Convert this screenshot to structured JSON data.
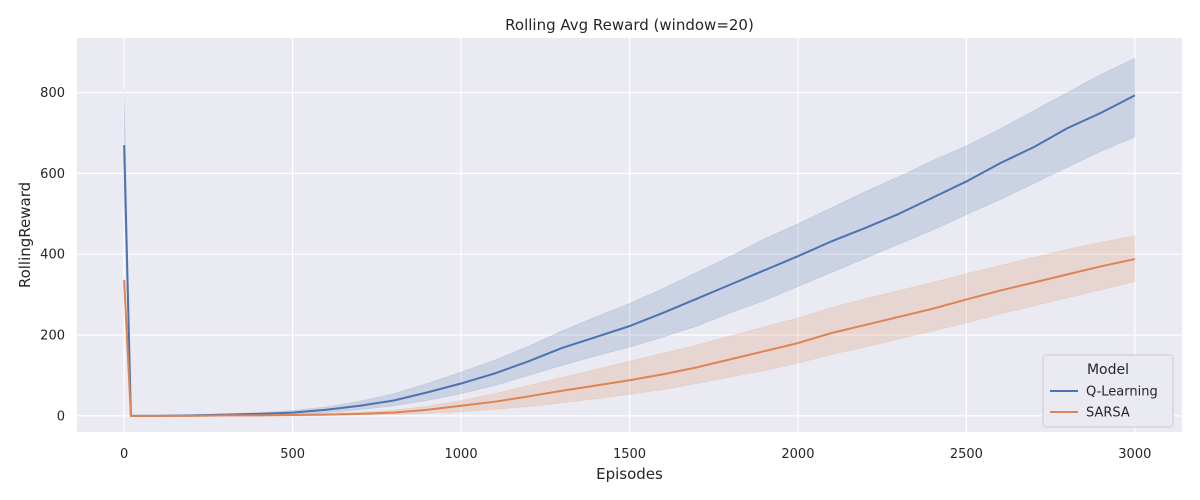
{
  "chart_data": {
    "type": "line",
    "title": "Rolling Avg Reward (window=20)",
    "xlabel": "Episodes",
    "ylabel": "RollingReward",
    "xlim": [
      -140,
      3140
    ],
    "ylim": [
      -40,
      935
    ],
    "xticks": [
      0,
      500,
      1000,
      1500,
      2000,
      2500,
      3000
    ],
    "yticks": [
      0,
      200,
      400,
      600,
      800
    ],
    "grid": true,
    "legend": {
      "title": "Model",
      "placement": "bottom-right"
    },
    "series": [
      {
        "name": "Q-Learning",
        "color": "#4c72b0",
        "x": [
          0,
          20,
          100,
          200,
          300,
          400,
          500,
          600,
          700,
          800,
          900,
          1000,
          1100,
          1200,
          1300,
          1400,
          1500,
          1600,
          1700,
          1800,
          1900,
          2000,
          2100,
          2200,
          2300,
          2400,
          2500,
          2600,
          2700,
          2800,
          2900,
          3000
        ],
        "y": [
          670,
          0,
          0,
          1,
          3,
          5,
          8,
          15,
          25,
          38,
          58,
          80,
          105,
          135,
          168,
          195,
          222,
          255,
          290,
          325,
          360,
          395,
          432,
          465,
          500,
          540,
          580,
          625,
          665,
          712,
          750,
          793
        ],
        "lower": [
          530,
          0,
          0,
          0,
          1,
          2,
          3,
          8,
          15,
          25,
          38,
          55,
          75,
          100,
          125,
          148,
          170,
          195,
          222,
          255,
          285,
          320,
          355,
          390,
          425,
          460,
          498,
          535,
          575,
          615,
          655,
          690
        ],
        "upper": [
          810,
          2,
          1,
          2,
          5,
          8,
          13,
          22,
          36,
          55,
          80,
          108,
          138,
          172,
          210,
          245,
          278,
          315,
          355,
          395,
          438,
          475,
          515,
          555,
          592,
          632,
          668,
          710,
          755,
          800,
          845,
          885
        ]
      },
      {
        "name": "SARSA",
        "color": "#dd8452",
        "x": [
          0,
          20,
          100,
          200,
          300,
          400,
          500,
          600,
          700,
          800,
          900,
          1000,
          1100,
          1200,
          1300,
          1400,
          1500,
          1600,
          1700,
          1800,
          1900,
          2000,
          2100,
          2200,
          2300,
          2400,
          2500,
          2600,
          2700,
          2800,
          2900,
          3000
        ],
        "y": [
          336,
          0,
          0,
          0,
          1,
          1,
          2,
          3,
          5,
          8,
          15,
          25,
          35,
          48,
          62,
          75,
          88,
          103,
          120,
          140,
          160,
          180,
          205,
          225,
          245,
          265,
          288,
          310,
          330,
          350,
          370,
          388
        ],
        "lower": [
          330,
          0,
          0,
          0,
          0,
          0,
          0,
          1,
          2,
          3,
          6,
          10,
          16,
          23,
          32,
          42,
          53,
          65,
          80,
          96,
          112,
          130,
          152,
          170,
          190,
          210,
          230,
          252,
          272,
          292,
          312,
          332
        ],
        "upper": [
          342,
          1,
          1,
          1,
          2,
          3,
          4,
          6,
          9,
          14,
          24,
          38,
          55,
          75,
          95,
          115,
          135,
          155,
          175,
          198,
          220,
          242,
          268,
          290,
          310,
          330,
          352,
          372,
          392,
          412,
          430,
          445
        ]
      }
    ]
  }
}
